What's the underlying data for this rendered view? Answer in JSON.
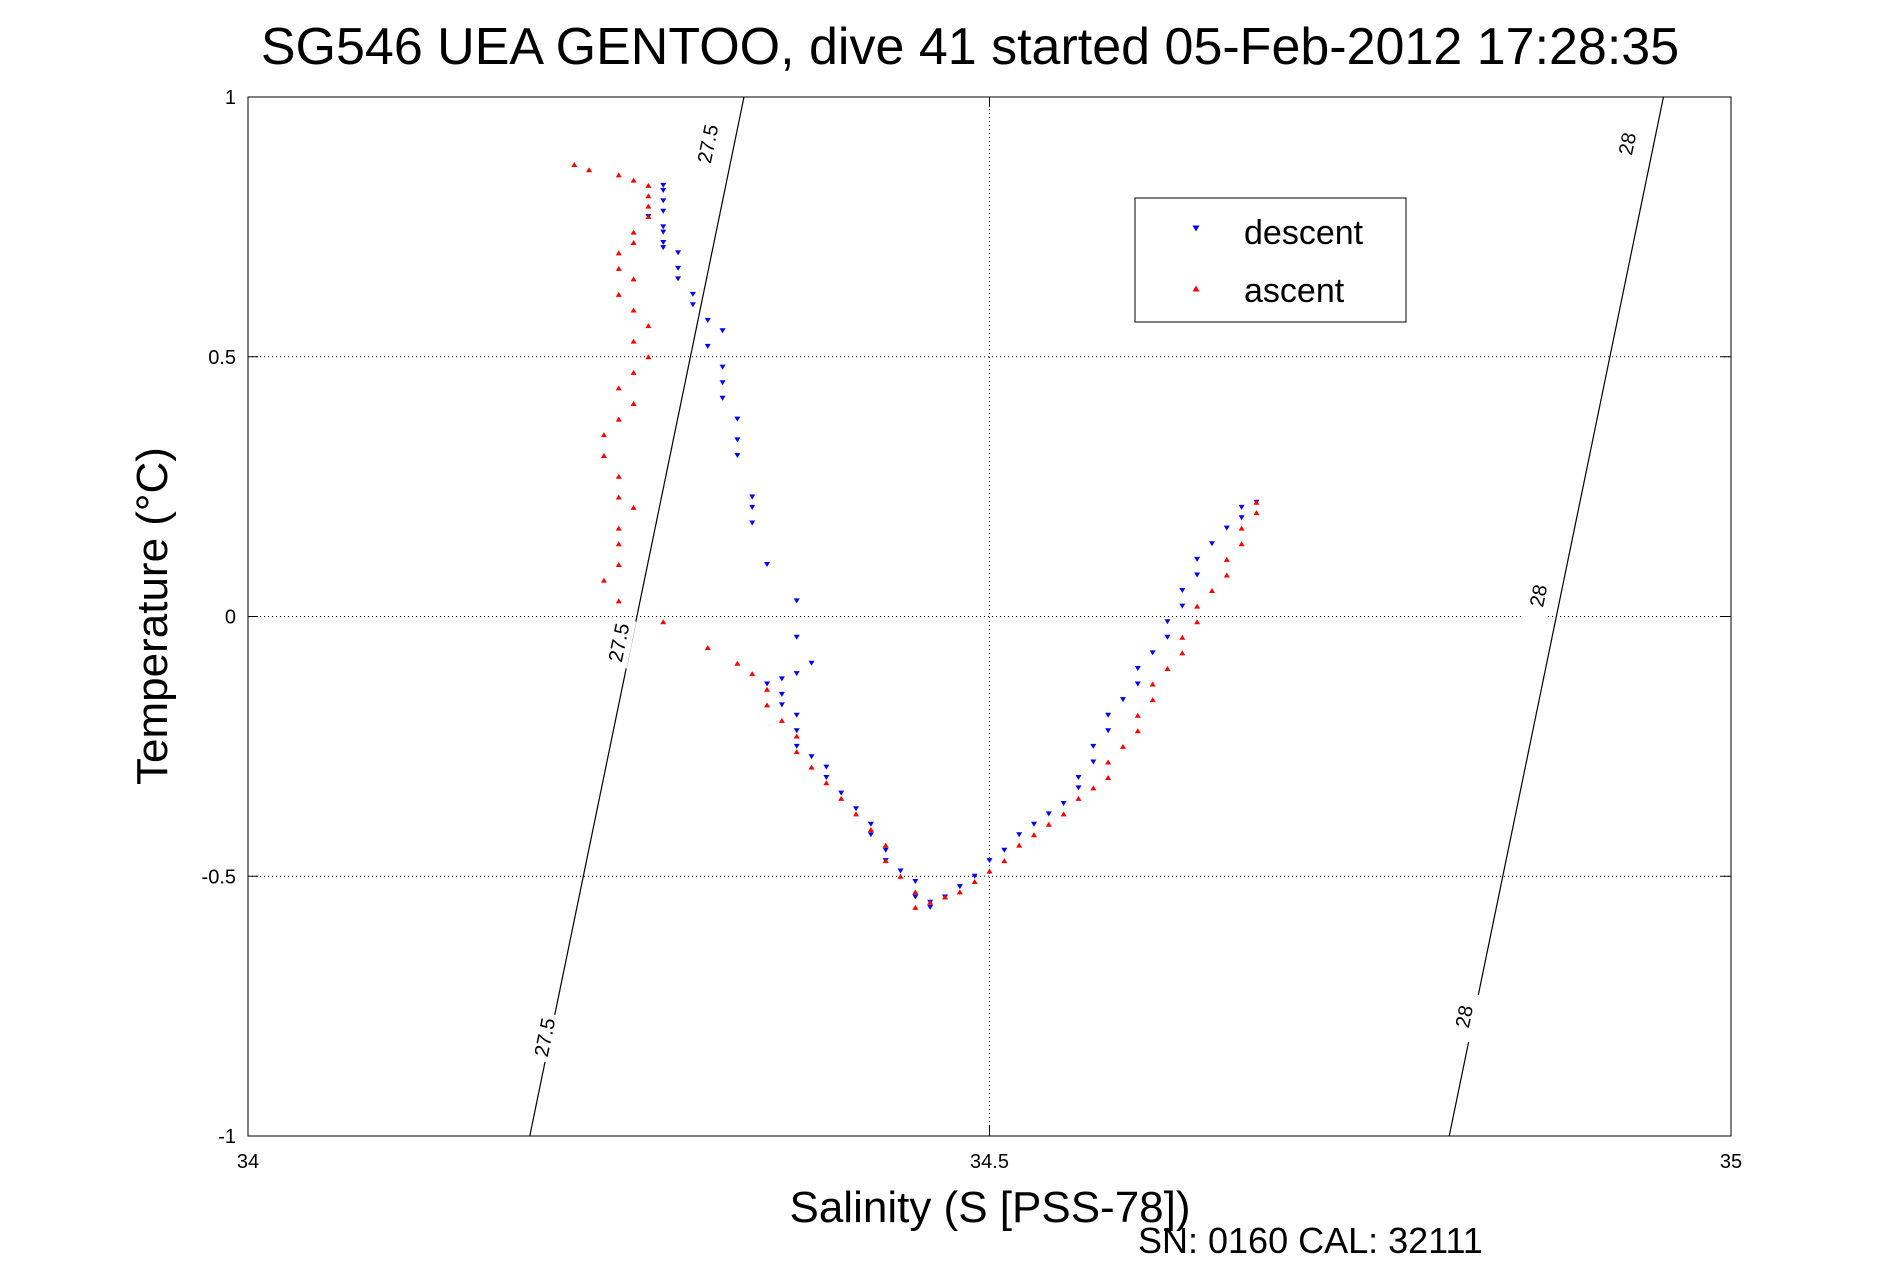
{
  "chart_data": {
    "type": "scatter",
    "title": "SG546 UEA GENTOO, dive 41 started 05-Feb-2012 17:28:35",
    "xlabel": "Salinity (S [PSS-78])",
    "ylabel": "Temperature (°C)",
    "xlim": [
      34,
      35
    ],
    "ylim": [
      -1,
      1
    ],
    "xticks": [
      34,
      34.5,
      35
    ],
    "xtick_labels": [
      "34",
      "34.5",
      "35"
    ],
    "yticks": [
      -1,
      -0.5,
      0,
      0.5,
      1
    ],
    "ytick_labels": [
      "-1",
      "-0.5",
      "0",
      "0.5",
      "1"
    ],
    "grid": true,
    "legend_position": "top-right",
    "contours": [
      {
        "value": "27.5",
        "points": [
          [
            34.19,
            -1.0
          ],
          [
            34.32,
            0.8
          ]
        ],
        "labels": [
          {
            "x": 34.2,
            "y": -0.81
          },
          {
            "x": 34.25,
            "y": -0.05
          },
          {
            "x": 34.31,
            "y": 0.91
          }
        ]
      },
      {
        "value": "28",
        "points": [
          [
            34.81,
            -1.0
          ],
          [
            34.94,
            0.8
          ]
        ],
        "labels": [
          {
            "x": 34.82,
            "y": -0.77
          },
          {
            "x": 34.87,
            "y": 0.04
          },
          {
            "x": 34.93,
            "y": 0.91
          }
        ]
      }
    ],
    "series": [
      {
        "name": "descent",
        "color": "#0000ff",
        "marker": "triangle-down",
        "points": [
          [
            34.28,
            0.83
          ],
          [
            34.28,
            0.82
          ],
          [
            34.28,
            0.8
          ],
          [
            34.28,
            0.78
          ],
          [
            34.27,
            0.77
          ],
          [
            34.28,
            0.75
          ],
          [
            34.28,
            0.74
          ],
          [
            34.28,
            0.72
          ],
          [
            34.28,
            0.71
          ],
          [
            34.29,
            0.7
          ],
          [
            34.29,
            0.67
          ],
          [
            34.29,
            0.65
          ],
          [
            34.3,
            0.62
          ],
          [
            34.3,
            0.6
          ],
          [
            34.31,
            0.57
          ],
          [
            34.32,
            0.55
          ],
          [
            34.31,
            0.52
          ],
          [
            34.32,
            0.48
          ],
          [
            34.32,
            0.45
          ],
          [
            34.32,
            0.42
          ],
          [
            34.33,
            0.38
          ],
          [
            34.33,
            0.34
          ],
          [
            34.33,
            0.31
          ],
          [
            34.34,
            0.23
          ],
          [
            34.34,
            0.21
          ],
          [
            34.34,
            0.18
          ],
          [
            34.35,
            0.1
          ],
          [
            34.37,
            0.03
          ],
          [
            34.37,
            -0.04
          ],
          [
            34.38,
            -0.09
          ],
          [
            34.37,
            -0.11
          ],
          [
            34.36,
            -0.12
          ],
          [
            34.35,
            -0.13
          ],
          [
            34.36,
            -0.15
          ],
          [
            34.36,
            -0.17
          ],
          [
            34.37,
            -0.19
          ],
          [
            34.37,
            -0.22
          ],
          [
            34.37,
            -0.25
          ],
          [
            34.38,
            -0.27
          ],
          [
            34.39,
            -0.29
          ],
          [
            34.39,
            -0.31
          ],
          [
            34.4,
            -0.34
          ],
          [
            34.41,
            -0.37
          ],
          [
            34.42,
            -0.4
          ],
          [
            34.42,
            -0.42
          ],
          [
            34.43,
            -0.45
          ],
          [
            34.43,
            -0.47
          ],
          [
            34.44,
            -0.49
          ],
          [
            34.45,
            -0.51
          ],
          [
            34.45,
            -0.54
          ],
          [
            34.46,
            -0.56
          ],
          [
            34.46,
            -0.55
          ],
          [
            34.47,
            -0.54
          ],
          [
            34.48,
            -0.52
          ],
          [
            34.49,
            -0.5
          ],
          [
            34.5,
            -0.47
          ],
          [
            34.51,
            -0.45
          ],
          [
            34.52,
            -0.42
          ],
          [
            34.53,
            -0.4
          ],
          [
            34.54,
            -0.38
          ],
          [
            34.55,
            -0.36
          ],
          [
            34.56,
            -0.33
          ],
          [
            34.56,
            -0.31
          ],
          [
            34.57,
            -0.28
          ],
          [
            34.57,
            -0.25
          ],
          [
            34.58,
            -0.22
          ],
          [
            34.58,
            -0.19
          ],
          [
            34.59,
            -0.16
          ],
          [
            34.6,
            -0.13
          ],
          [
            34.6,
            -0.1
          ],
          [
            34.61,
            -0.07
          ],
          [
            34.62,
            -0.04
          ],
          [
            34.62,
            -0.01
          ],
          [
            34.63,
            0.02
          ],
          [
            34.63,
            0.05
          ],
          [
            34.64,
            0.08
          ],
          [
            34.64,
            0.11
          ],
          [
            34.65,
            0.14
          ],
          [
            34.66,
            0.17
          ],
          [
            34.67,
            0.19
          ],
          [
            34.67,
            0.21
          ],
          [
            34.68,
            0.22
          ]
        ]
      },
      {
        "name": "ascent",
        "color": "#ff0000",
        "marker": "triangle-up",
        "points": [
          [
            34.22,
            0.87
          ],
          [
            34.23,
            0.86
          ],
          [
            34.25,
            0.85
          ],
          [
            34.26,
            0.84
          ],
          [
            34.27,
            0.83
          ],
          [
            34.27,
            0.81
          ],
          [
            34.27,
            0.79
          ],
          [
            34.27,
            0.77
          ],
          [
            34.26,
            0.74
          ],
          [
            34.26,
            0.72
          ],
          [
            34.25,
            0.7
          ],
          [
            34.25,
            0.67
          ],
          [
            34.26,
            0.65
          ],
          [
            34.25,
            0.62
          ],
          [
            34.26,
            0.59
          ],
          [
            34.27,
            0.56
          ],
          [
            34.26,
            0.53
          ],
          [
            34.27,
            0.5
          ],
          [
            34.26,
            0.47
          ],
          [
            34.25,
            0.44
          ],
          [
            34.26,
            0.41
          ],
          [
            34.25,
            0.38
          ],
          [
            34.24,
            0.35
          ],
          [
            34.24,
            0.31
          ],
          [
            34.25,
            0.27
          ],
          [
            34.25,
            0.23
          ],
          [
            34.26,
            0.21
          ],
          [
            34.25,
            0.17
          ],
          [
            34.25,
            0.14
          ],
          [
            34.25,
            0.1
          ],
          [
            34.24,
            0.07
          ],
          [
            34.25,
            0.03
          ],
          [
            34.28,
            -0.01
          ],
          [
            34.31,
            -0.06
          ],
          [
            34.33,
            -0.09
          ],
          [
            34.34,
            -0.11
          ],
          [
            34.35,
            -0.14
          ],
          [
            34.35,
            -0.17
          ],
          [
            34.36,
            -0.2
          ],
          [
            34.37,
            -0.23
          ],
          [
            34.37,
            -0.26
          ],
          [
            34.38,
            -0.29
          ],
          [
            34.39,
            -0.32
          ],
          [
            34.4,
            -0.35
          ],
          [
            34.41,
            -0.38
          ],
          [
            34.42,
            -0.41
          ],
          [
            34.43,
            -0.44
          ],
          [
            34.43,
            -0.47
          ],
          [
            34.44,
            -0.5
          ],
          [
            34.45,
            -0.53
          ],
          [
            34.45,
            -0.56
          ],
          [
            34.46,
            -0.55
          ],
          [
            34.47,
            -0.54
          ],
          [
            34.48,
            -0.53
          ],
          [
            34.49,
            -0.51
          ],
          [
            34.5,
            -0.49
          ],
          [
            34.51,
            -0.47
          ],
          [
            34.52,
            -0.44
          ],
          [
            34.53,
            -0.42
          ],
          [
            34.54,
            -0.4
          ],
          [
            34.55,
            -0.38
          ],
          [
            34.56,
            -0.35
          ],
          [
            34.57,
            -0.33
          ],
          [
            34.58,
            -0.31
          ],
          [
            34.58,
            -0.28
          ],
          [
            34.59,
            -0.25
          ],
          [
            34.6,
            -0.22
          ],
          [
            34.6,
            -0.19
          ],
          [
            34.61,
            -0.16
          ],
          [
            34.61,
            -0.13
          ],
          [
            34.62,
            -0.1
          ],
          [
            34.63,
            -0.07
          ],
          [
            34.63,
            -0.04
          ],
          [
            34.64,
            -0.01
          ],
          [
            34.64,
            0.02
          ],
          [
            34.65,
            0.05
          ],
          [
            34.66,
            0.08
          ],
          [
            34.66,
            0.11
          ],
          [
            34.67,
            0.14
          ],
          [
            34.67,
            0.17
          ],
          [
            34.68,
            0.2
          ],
          [
            34.68,
            0.22
          ]
        ]
      }
    ]
  },
  "footer": {
    "text": "SN: 0160  CAL: 32111"
  }
}
